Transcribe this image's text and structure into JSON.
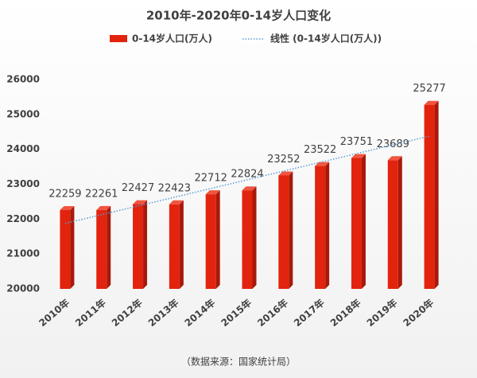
{
  "chart_data": {
    "type": "bar",
    "title": "2010年-2020年0-14岁人口变化",
    "categories": [
      "2010年",
      "2011年",
      "2012年",
      "2013年",
      "2014年",
      "2015年",
      "2016年",
      "2017年",
      "2018年",
      "2019年",
      "2020年"
    ],
    "series": [
      {
        "name": "0-14岁人口(万人)",
        "color": "#e2230e",
        "values": [
          22259,
          22261,
          22427,
          22423,
          22712,
          22824,
          23252,
          23522,
          23751,
          23689,
          25277
        ]
      }
    ],
    "trendline": {
      "name": "线性 (0-14岁人口(万人))",
      "color": "#5b9bd5"
    },
    "ylim": [
      20000,
      26000
    ],
    "yticks": [
      20000,
      21000,
      22000,
      23000,
      24000,
      25000,
      26000
    ],
    "grid": false,
    "source": "（数据来源：国家统计局）"
  }
}
